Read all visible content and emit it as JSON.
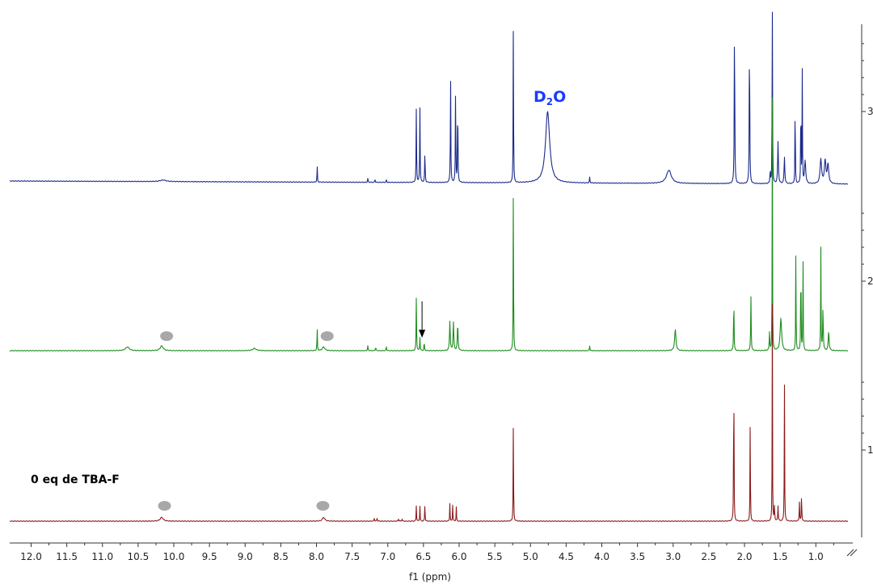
{
  "chart_data": {
    "type": "line",
    "title": "",
    "x_axis": {
      "label": "f1 (ppm)",
      "range": [
        12.3,
        0.55
      ],
      "reversed": true,
      "ticks": [
        "12.0",
        "11.5",
        "11.0",
        "10.5",
        "10.0",
        "9.5",
        "9.0",
        "8.5",
        "8.0",
        "7.5",
        "7.0",
        "6.5",
        "6.0",
        "5.5",
        "5.0",
        "4.5",
        "4.0",
        "3.5",
        "3.0",
        "2.5",
        "2.0",
        "1.5",
        "1.0"
      ]
    },
    "y_axis": {
      "position": "right",
      "ticks": [
        "1",
        "2",
        "3"
      ]
    },
    "grid": false,
    "series": [
      {
        "color": "#1a2a8c",
        "stack_index": 3,
        "baseline_slope": 0.0037,
        "peaks": [
          {
            "ppm": 10.15,
            "height": 0.008,
            "width": 0.1
          },
          {
            "ppm": 7.99,
            "height": 0.095,
            "width": 0.006
          },
          {
            "ppm": 7.28,
            "height": 0.02,
            "width": 0.008
          },
          {
            "ppm": 7.18,
            "height": 0.015,
            "width": 0.008
          },
          {
            "ppm": 7.02,
            "height": 0.012,
            "width": 0.008
          },
          {
            "ppm": 6.6,
            "height": 0.395,
            "width": 0.007
          },
          {
            "ppm": 6.55,
            "height": 0.395,
            "width": 0.007
          },
          {
            "ppm": 6.48,
            "height": 0.16,
            "width": 0.008
          },
          {
            "ppm": 6.12,
            "height": 0.57,
            "width": 0.007
          },
          {
            "ppm": 6.05,
            "height": 0.49,
            "width": 0.007
          },
          {
            "ppm": 6.02,
            "height": 0.47,
            "width": 0.007
          },
          {
            "ppm": 5.24,
            "height": 0.875,
            "width": 0.006
          },
          {
            "ppm": 4.76,
            "height": 0.375,
            "width": 0.07
          },
          {
            "ppm": 4.17,
            "height": 0.03,
            "width": 0.008
          },
          {
            "ppm": 3.06,
            "height": 0.07,
            "width": 0.08
          },
          {
            "ppm": 2.14,
            "height": 0.895,
            "width": 0.008
          },
          {
            "ppm": 1.93,
            "height": 0.81,
            "width": 0.008
          },
          {
            "ppm": 1.64,
            "height": 0.07,
            "width": 0.008
          },
          {
            "ppm": 1.61,
            "height": 1.5,
            "width": 0.005
          },
          {
            "ppm": 1.53,
            "height": 0.22,
            "width": 0.012
          },
          {
            "ppm": 1.44,
            "height": 0.14,
            "width": 0.012
          },
          {
            "ppm": 1.29,
            "height": 0.495,
            "width": 0.006
          },
          {
            "ppm": 1.21,
            "height": 0.53,
            "width": 0.006
          },
          {
            "ppm": 1.19,
            "height": 0.59,
            "width": 0.006
          },
          {
            "ppm": 1.15,
            "height": 0.12,
            "width": 0.02
          },
          {
            "ppm": 0.93,
            "height": 0.13,
            "width": 0.025
          },
          {
            "ppm": 0.87,
            "height": 0.12,
            "width": 0.025
          },
          {
            "ppm": 0.83,
            "height": 0.1,
            "width": 0.025
          }
        ]
      },
      {
        "color": "#1e8c1e",
        "stack_index": 2,
        "baseline_slope": 0.0,
        "peaks": [
          {
            "ppm": 10.65,
            "height": 0.02,
            "width": 0.06
          },
          {
            "ppm": 10.17,
            "height": 0.025,
            "width": 0.05
          },
          {
            "ppm": 8.87,
            "height": 0.012,
            "width": 0.06
          },
          {
            "ppm": 7.99,
            "height": 0.13,
            "width": 0.006
          },
          {
            "ppm": 7.9,
            "height": 0.02,
            "width": 0.04
          },
          {
            "ppm": 7.28,
            "height": 0.025,
            "width": 0.008
          },
          {
            "ppm": 7.17,
            "height": 0.02,
            "width": 0.008
          },
          {
            "ppm": 7.02,
            "height": 0.02,
            "width": 0.008
          },
          {
            "ppm": 6.6,
            "height": 0.285,
            "width": 0.007
          },
          {
            "ppm": 6.55,
            "height": 0.07,
            "width": 0.007
          },
          {
            "ppm": 6.49,
            "height": 0.05,
            "width": 0.007
          },
          {
            "ppm": 6.13,
            "height": 0.155,
            "width": 0.012
          },
          {
            "ppm": 6.08,
            "height": 0.15,
            "width": 0.012
          },
          {
            "ppm": 6.02,
            "height": 0.14,
            "width": 0.012
          },
          {
            "ppm": 5.24,
            "height": 0.88,
            "width": 0.006
          },
          {
            "ppm": 4.17,
            "height": 0.025,
            "width": 0.008
          },
          {
            "ppm": 2.97,
            "height": 0.11,
            "width": 0.022
          },
          {
            "ppm": 2.15,
            "height": 0.305,
            "width": 0.007
          },
          {
            "ppm": 1.91,
            "height": 0.285,
            "width": 0.008
          },
          {
            "ppm": 1.65,
            "height": 0.1,
            "width": 0.008
          },
          {
            "ppm": 1.61,
            "height": 1.4,
            "width": 0.005
          },
          {
            "ppm": 1.49,
            "height": 0.17,
            "width": 0.025
          },
          {
            "ppm": 1.28,
            "height": 0.535,
            "width": 0.006
          },
          {
            "ppm": 1.21,
            "height": 0.56,
            "width": 0.006
          },
          {
            "ppm": 1.18,
            "height": 0.53,
            "width": 0.006
          },
          {
            "ppm": 0.93,
            "height": 0.55,
            "width": 0.006
          },
          {
            "ppm": 0.9,
            "height": 0.22,
            "width": 0.01
          },
          {
            "ppm": 0.82,
            "height": 0.1,
            "width": 0.015
          }
        ]
      },
      {
        "color": "#8b1a1a",
        "stack_index": 1,
        "baseline_slope": 0.0,
        "peaks": [
          {
            "ppm": 10.17,
            "height": 0.02,
            "width": 0.05
          },
          {
            "ppm": 7.9,
            "height": 0.02,
            "width": 0.04
          },
          {
            "ppm": 7.19,
            "height": 0.015,
            "width": 0.008
          },
          {
            "ppm": 7.15,
            "height": 0.015,
            "width": 0.008
          },
          {
            "ppm": 6.85,
            "height": 0.012,
            "width": 0.008
          },
          {
            "ppm": 6.8,
            "height": 0.012,
            "width": 0.008
          },
          {
            "ppm": 6.6,
            "height": 0.085,
            "width": 0.006
          },
          {
            "ppm": 6.55,
            "height": 0.08,
            "width": 0.006
          },
          {
            "ppm": 6.48,
            "height": 0.1,
            "width": 0.006
          },
          {
            "ppm": 6.13,
            "height": 0.095,
            "width": 0.006
          },
          {
            "ppm": 6.09,
            "height": 0.09,
            "width": 0.006
          },
          {
            "ppm": 6.04,
            "height": 0.075,
            "width": 0.006
          },
          {
            "ppm": 5.24,
            "height": 0.535,
            "width": 0.006
          },
          {
            "ppm": 2.15,
            "height": 0.92,
            "width": 0.006
          },
          {
            "ppm": 1.92,
            "height": 0.55,
            "width": 0.006
          },
          {
            "ppm": 1.61,
            "height": 1.2,
            "width": 0.005
          },
          {
            "ppm": 1.58,
            "height": 0.08,
            "width": 0.008
          },
          {
            "ppm": 1.53,
            "height": 0.08,
            "width": 0.008
          },
          {
            "ppm": 1.44,
            "height": 0.74,
            "width": 0.006
          },
          {
            "ppm": 1.23,
            "height": 0.1,
            "width": 0.007
          },
          {
            "ppm": 1.2,
            "height": 0.14,
            "width": 0.007
          }
        ]
      }
    ],
    "annotations": [
      {
        "text": "D",
        "subscript": "2",
        "suffix": "O",
        "color": "#1a3cff",
        "ppm": 4.9,
        "stack_index": 3
      },
      {
        "text": "0 eq de TBA-F",
        "color": "#000000",
        "ppm": 11.0,
        "stack_index": 1
      }
    ],
    "markers": [
      {
        "type": "dot",
        "color": "#a8a8a8",
        "ppm": 10.1,
        "stack_index": 2
      },
      {
        "type": "dot",
        "color": "#a8a8a8",
        "ppm": 7.85,
        "stack_index": 2
      },
      {
        "type": "dot",
        "color": "#a8a8a8",
        "ppm": 10.13,
        "stack_index": 1
      },
      {
        "type": "dot",
        "color": "#a8a8a8",
        "ppm": 7.91,
        "stack_index": 1
      },
      {
        "type": "arrow",
        "color": "#000000",
        "ppm": 6.52,
        "stack_index": 2,
        "points_to": "peak"
      }
    ]
  }
}
